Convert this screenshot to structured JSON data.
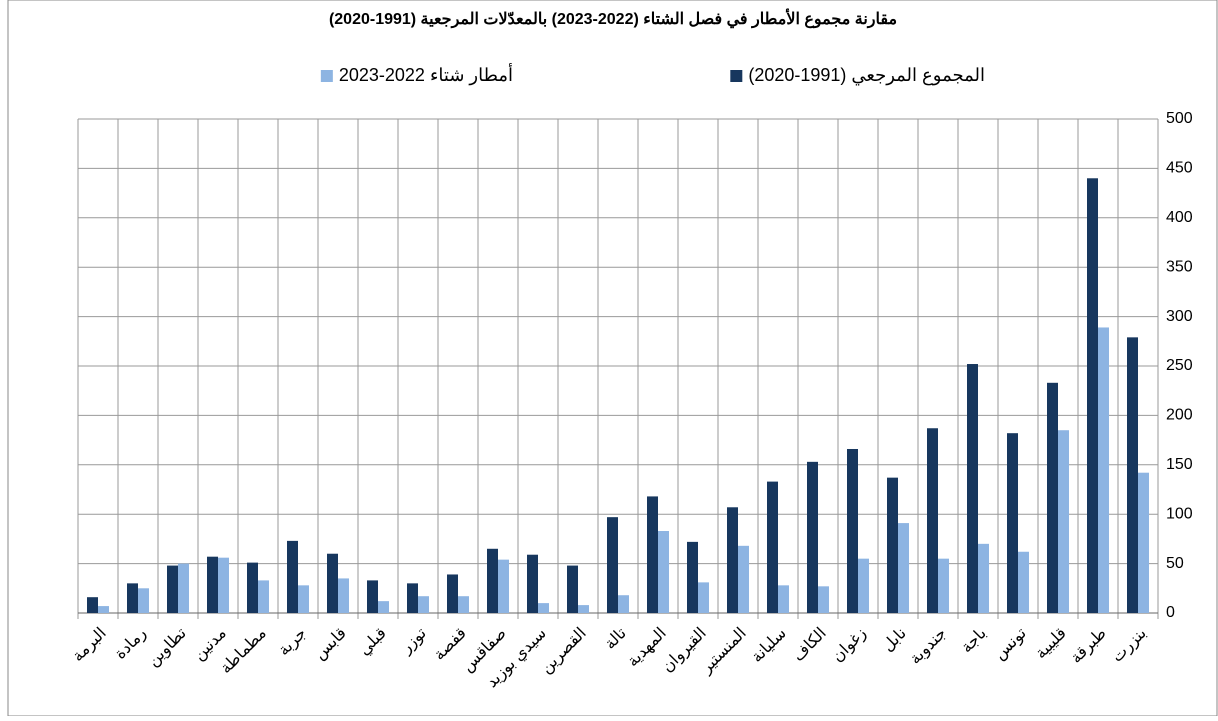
{
  "chart_data": {
    "type": "bar",
    "title": "مقارنة مجموع الأمطار في فصل الشتاء (2022-2023) بالمعدّلات المرجعية (1991-2020)",
    "categories": [
      "بنزرت",
      "طبرقة",
      "قليبية",
      "تونس",
      "باجة",
      "جندوبة",
      "نابل",
      "زغوان",
      "الكاف",
      "سليانة",
      "المنستير",
      "القيروان",
      "المهدية",
      "تالة",
      "القصرين",
      "سيدي بوزيد",
      "صفاقس",
      "قفصة",
      "توزر",
      "قبلي",
      "قابس",
      "جربة",
      "مطماطة",
      "مدنين",
      "تطاوين",
      "رمادة",
      "البرمة"
    ],
    "series": [
      {
        "name": "المجموع المرجعي (1991-2020)",
        "color": "#17375e",
        "values": [
          279,
          440,
          233,
          182,
          252,
          187,
          137,
          166,
          153,
          133,
          107,
          72,
          118,
          97,
          48,
          59,
          65,
          39,
          30,
          33,
          60,
          73,
          51,
          57,
          48,
          30,
          16
        ]
      },
      {
        "name": "أمطار شتاء 2022-2023",
        "color": "#8db4e2",
        "values": [
          142,
          289,
          185,
          62,
          70,
          55,
          91,
          55,
          27,
          28,
          68,
          31,
          83,
          18,
          8,
          10,
          54,
          17,
          17,
          12,
          35,
          28,
          33,
          56,
          50,
          25,
          7
        ]
      }
    ],
    "ylim": [
      0,
      500
    ],
    "yticks": [
      0,
      50,
      100,
      150,
      200,
      250,
      300,
      350,
      400,
      450,
      500
    ],
    "grid": true
  }
}
